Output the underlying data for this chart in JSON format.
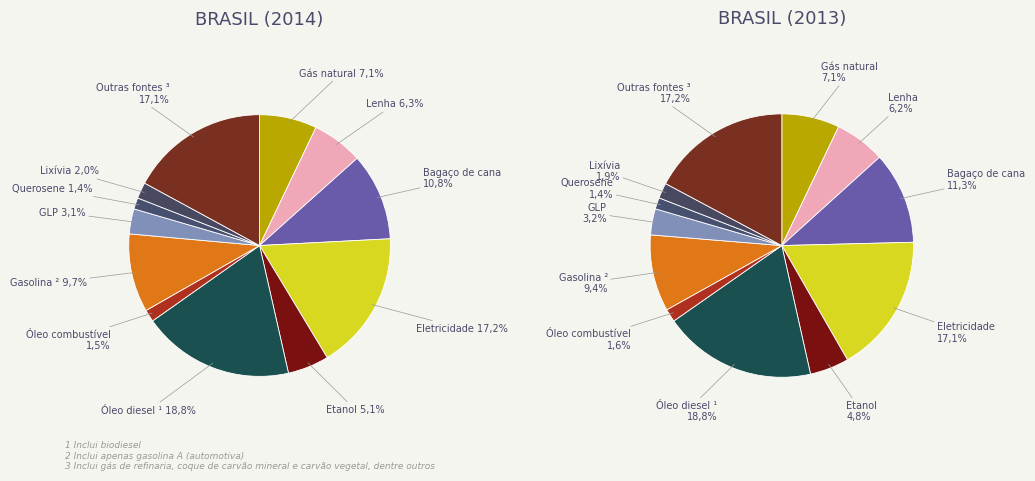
{
  "title_2014": "BRASIL (2014)",
  "title_2013": "BRASIL (2013)",
  "chart2014": {
    "labels": [
      "Gás natural 7,1%",
      "Lenha 6,3%",
      "Bagaço de cana\n10,8%",
      "Eletricidade 17,2%",
      "Etanol 5,1%",
      "Óleo diesel ¹ 18,8%",
      "Óleo combustível\n1,5%",
      "Gasolina ² 9,7%",
      "GLP 3,1%",
      "Querosene 1,4%",
      "Lixívia 2,0%",
      "Outras fontes ³\n17,1%"
    ],
    "values": [
      7.1,
      6.3,
      10.8,
      17.2,
      5.1,
      18.8,
      1.5,
      9.7,
      3.1,
      1.4,
      2.0,
      17.1
    ],
    "colors": [
      "#b8a800",
      "#f0a8b8",
      "#6a5aaa",
      "#d8d820",
      "#7a1010",
      "#1a5050",
      "#b03020",
      "#e07818",
      "#8090b8",
      "#485070",
      "#484860",
      "#7a3020"
    ]
  },
  "chart2013": {
    "labels": [
      "Gás natural\n7,1%",
      "Lenha\n6,2%",
      "Bagaço de cana\n11,3%",
      "Eletricidade\n17,1%",
      "Etanol\n4,8%",
      "Óleo diesel ¹\n18,8%",
      "Óleo combustível\n1,6%",
      "Gasolina ²\n9,4%",
      "GLP\n3,2%",
      "Querosene\n1,4%",
      "Lixívia\n1,9%",
      "Outras fontes ³\n17,2%"
    ],
    "values": [
      7.1,
      6.2,
      11.3,
      17.1,
      4.8,
      18.8,
      1.6,
      9.4,
      3.2,
      1.4,
      1.9,
      17.2
    ],
    "colors": [
      "#b8a800",
      "#f0a8b8",
      "#6a5aaa",
      "#d8d820",
      "#7a1010",
      "#1a5050",
      "#b03020",
      "#e07818",
      "#8090b8",
      "#485070",
      "#484860",
      "#7a3020"
    ]
  },
  "footnotes": [
    "1 Inclui biodiesel",
    "2 Inclui apenas gasolina A (automotiva)",
    "3 Inclui gás de refinaria, coque de carvão mineral e carvão vegetal, dentre outros"
  ],
  "background_color": "#f5f5f0",
  "text_color": "#4a4a6a",
  "title_fontsize": 13,
  "label_fontsize": 7.0
}
